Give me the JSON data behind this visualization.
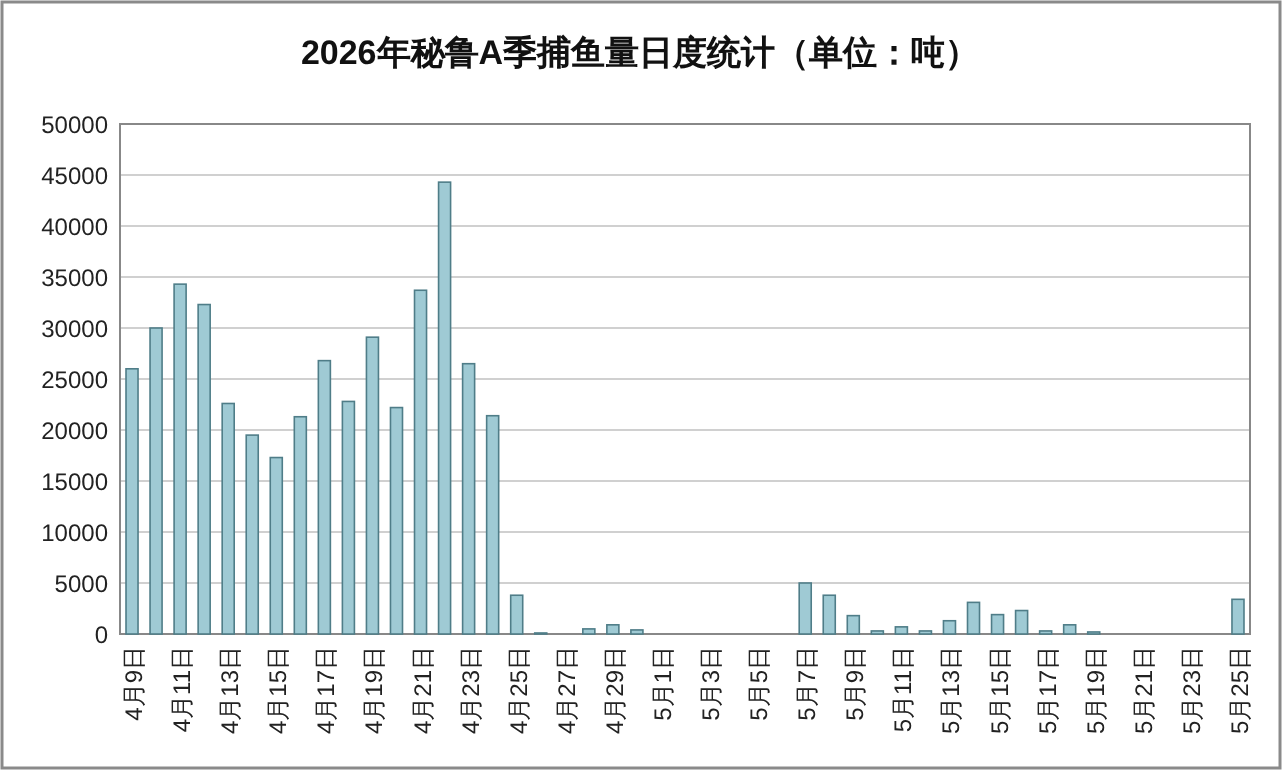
{
  "chart_data": {
    "type": "bar",
    "title": "2026年秘鲁A季捕鱼量日度统计（单位：吨）",
    "categories": [
      "4月9日",
      null,
      "4月11日",
      null,
      "4月13日",
      null,
      "4月15日",
      null,
      "4月17日",
      null,
      "4月19日",
      null,
      "4月21日",
      null,
      "4月23日",
      null,
      "4月25日",
      null,
      "4月27日",
      null,
      "4月29日",
      null,
      "5月1日",
      null,
      "5月3日",
      null,
      "5月5日",
      null,
      "5月7日",
      null,
      "5月9日",
      null,
      "5月11日",
      null,
      "5月13日",
      null,
      "5月15日",
      null,
      "5月17日",
      null,
      "5月19日",
      null,
      "5月21日",
      null,
      "5月23日",
      null,
      "5月25日"
    ],
    "values": [
      26000,
      30000,
      34300,
      32300,
      22600,
      19500,
      17300,
      21300,
      26800,
      22800,
      29100,
      22200,
      33700,
      44300,
      26500,
      21400,
      3800,
      100,
      0,
      500,
      900,
      400,
      0,
      0,
      0,
      0,
      0,
      0,
      5000,
      3800,
      1800,
      300,
      700,
      300,
      1300,
      3100,
      1900,
      2300,
      300,
      900,
      200,
      0,
      0,
      0,
      0,
      0,
      3400
    ],
    "color": "#9fcad4",
    "ylim": [
      0,
      50000
    ],
    "yticks": [
      0,
      5000,
      10000,
      15000,
      20000,
      25000,
      30000,
      35000,
      40000,
      45000,
      50000
    ],
    "grid": "y"
  }
}
